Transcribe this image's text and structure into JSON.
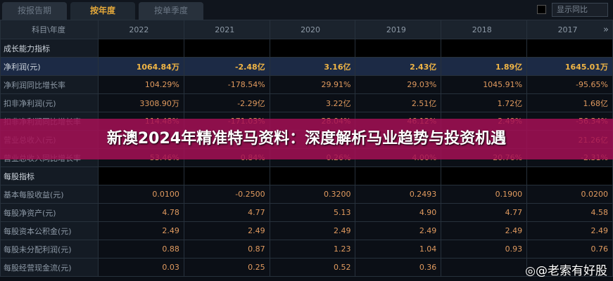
{
  "tabs": [
    "按报告期",
    "按年度",
    "按单季度"
  ],
  "active_tab": 1,
  "show_yoy_label": "显示同比",
  "header": {
    "label": "科目\\年度",
    "years": [
      "2022",
      "2021",
      "2020",
      "2019",
      "2018",
      "2017"
    ]
  },
  "rows": [
    {
      "label": "成长能力指标",
      "type": "sec",
      "values": [
        "",
        "",
        "",
        "",
        "",
        ""
      ]
    },
    {
      "label": "净利润(元)",
      "type": "hl",
      "values": [
        "1064.84万",
        "-2.48亿",
        "3.16亿",
        "2.43亿",
        "1.89亿",
        "1645.01万"
      ]
    },
    {
      "label": "净利润同比增长率",
      "values": [
        "104.29%",
        "-178.54%",
        "29.91%",
        "29.03%",
        "1045.91%",
        "-95.65%"
      ]
    },
    {
      "label": "扣非净利润(元)",
      "values": [
        "3308.90万",
        "-2.29亿",
        "3.22亿",
        "2.51亿",
        "1.72亿",
        "1.68亿"
      ]
    },
    {
      "label": "扣非净利润同比增长率",
      "values": [
        "114.48%",
        "-171.03%",
        "28.04%",
        "46.12%",
        "2.49%",
        "-56.34%"
      ]
    },
    {
      "label": "营业总收入(元)",
      "values": [
        "",
        "",
        "",
        "",
        "",
        "21.26亿"
      ]
    },
    {
      "label": "营业总收入同比增长率",
      "values": [
        "53.46%",
        "0.84%",
        "0.26%",
        "4.00%",
        "20.76%",
        "-2.31%"
      ]
    },
    {
      "label": "每股指标",
      "type": "sec",
      "values": [
        "",
        "",
        "",
        "",
        "",
        ""
      ]
    },
    {
      "label": "基本每股收益(元)",
      "values": [
        "0.0100",
        "-0.2500",
        "0.3200",
        "0.2493",
        "0.1900",
        "0.0200"
      ]
    },
    {
      "label": "每股净资产(元)",
      "values": [
        "4.78",
        "4.77",
        "5.13",
        "4.90",
        "4.77",
        "4.58"
      ]
    },
    {
      "label": "每股资本公积金(元)",
      "values": [
        "2.49",
        "2.49",
        "2.49",
        "2.49",
        "2.49",
        "2.49"
      ]
    },
    {
      "label": "每股未分配利润(元)",
      "values": [
        "0.88",
        "0.87",
        "1.23",
        "1.04",
        "0.93",
        "0.76"
      ]
    },
    {
      "label": "每股经营现金流(元)",
      "values": [
        "0.03",
        "0.25",
        "0.52",
        "0.36",
        "",
        ""
      ]
    }
  ],
  "banner": "新澳2024年精准特马资料：深度解析马业趋势与投资机遇",
  "watermark": "@老索有好股"
}
